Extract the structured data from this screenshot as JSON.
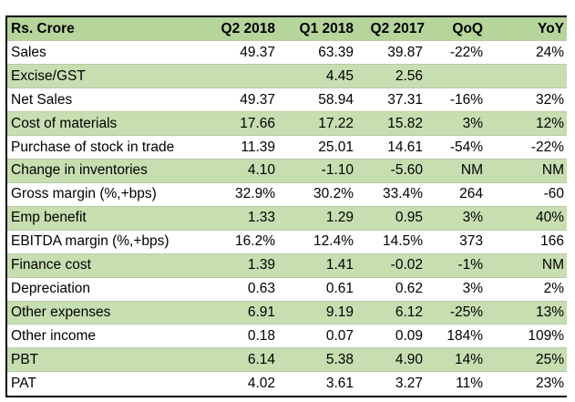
{
  "table": {
    "headers": [
      "Rs. Crore",
      "Q2 2018",
      "Q1 2018",
      "Q2 2017",
      "QoQ",
      "YoY"
    ],
    "rows": [
      {
        "label": "Sales",
        "cells": [
          "49.37",
          "63.39",
          "39.87",
          "-22%",
          "24%"
        ],
        "shaded": false
      },
      {
        "label": "Excise/GST",
        "cells": [
          "",
          "4.45",
          "2.56",
          "",
          ""
        ],
        "shaded": true
      },
      {
        "label": "Net Sales",
        "cells": [
          "49.37",
          "58.94",
          "37.31",
          "-16%",
          "32%"
        ],
        "shaded": false
      },
      {
        "label": "Cost of materials",
        "cells": [
          "17.66",
          "17.22",
          "15.82",
          "3%",
          "12%"
        ],
        "shaded": true
      },
      {
        "label": "Purchase of stock in trade",
        "cells": [
          "11.39",
          "25.01",
          "14.61",
          "-54%",
          "-22%"
        ],
        "shaded": false
      },
      {
        "label": "Change in inventories",
        "cells": [
          "4.10",
          "-1.10",
          "-5.60",
          "NM",
          "NM"
        ],
        "shaded": true
      },
      {
        "label": "Gross margin (%,+bps)",
        "cells": [
          "32.9%",
          "30.2%",
          "33.4%",
          "264",
          "-60"
        ],
        "shaded": false
      },
      {
        "label": "Emp benefit",
        "cells": [
          "1.33",
          "1.29",
          "0.95",
          "3%",
          "40%"
        ],
        "shaded": true
      },
      {
        "label": "EBITDA margin (%,+bps)",
        "cells": [
          "16.2%",
          "12.4%",
          "14.5%",
          "373",
          "166"
        ],
        "shaded": false
      },
      {
        "label": "Finance cost",
        "cells": [
          "1.39",
          "1.41",
          "-0.02",
          "-1%",
          "NM"
        ],
        "shaded": true
      },
      {
        "label": "Depreciation",
        "cells": [
          "0.63",
          "0.61",
          "0.62",
          "3%",
          "2%"
        ],
        "shaded": false
      },
      {
        "label": "Other expenses",
        "cells": [
          "6.91",
          "9.19",
          "6.12",
          "-25%",
          "13%"
        ],
        "shaded": true
      },
      {
        "label": "Other income",
        "cells": [
          "0.18",
          "0.07",
          "0.09",
          "184%",
          "109%"
        ],
        "shaded": false
      },
      {
        "label": "PBT",
        "cells": [
          "6.14",
          "5.38",
          "4.90",
          "14%",
          "25%"
        ],
        "shaded": true
      },
      {
        "label": "PAT",
        "cells": [
          "4.02",
          "3.61",
          "3.27",
          "11%",
          "23%"
        ],
        "shaded": false
      }
    ]
  },
  "colors": {
    "header_bg": "#b6d59b",
    "shaded_bg": "#c7deb1",
    "plain_bg": "#ffffff",
    "border": "#000000"
  }
}
